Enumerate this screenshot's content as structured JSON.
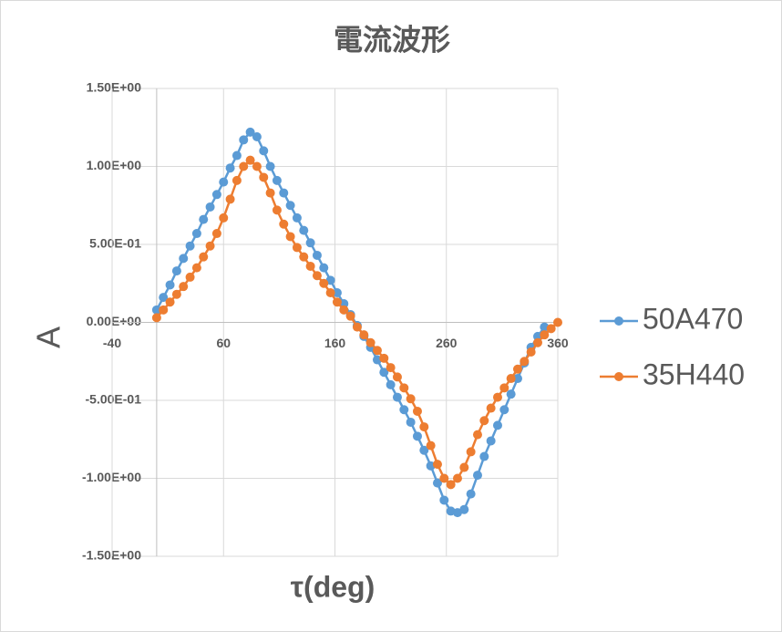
{
  "chart_data": {
    "type": "scatter",
    "title": "電流波形",
    "x_label": "τ(deg)",
    "y_label": "A",
    "xlim": [
      -40,
      360
    ],
    "xticks": [
      -40,
      60,
      160,
      260,
      360
    ],
    "ylim": [
      -1.5,
      1.5
    ],
    "yticks": [
      {
        "value": -1.5,
        "label": "-1.50E+00"
      },
      {
        "value": -1.0,
        "label": "-1.00E+00"
      },
      {
        "value": -0.5,
        "label": "-5.00E-01"
      },
      {
        "value": 0,
        "label": "0.00E+00"
      },
      {
        "value": 0.5,
        "label": "5.00E-01"
      },
      {
        "value": 1.0,
        "label": "1.00E+00"
      },
      {
        "value": 1.5,
        "label": "1.50E+00"
      }
    ],
    "grid": true,
    "legend": "right",
    "series": [
      {
        "name": "50A470",
        "color": "#5b9bd5",
        "x": [
          0,
          6,
          12,
          18,
          24,
          30,
          36,
          42,
          48,
          54,
          60,
          66,
          72,
          78,
          84,
          90,
          96,
          102,
          108,
          114,
          120,
          126,
          132,
          138,
          144,
          150,
          156,
          162,
          168,
          174,
          180,
          186,
          192,
          198,
          204,
          210,
          216,
          222,
          228,
          234,
          240,
          246,
          252,
          258,
          264,
          270,
          276,
          282,
          288,
          294,
          300,
          306,
          312,
          318,
          324,
          330,
          336,
          342,
          348
        ],
        "values": [
          0.08,
          0.16,
          0.24,
          0.33,
          0.41,
          0.49,
          0.57,
          0.66,
          0.74,
          0.82,
          0.9,
          0.99,
          1.07,
          1.17,
          1.22,
          1.19,
          1.1,
          1.0,
          0.91,
          0.83,
          0.75,
          0.67,
          0.59,
          0.51,
          0.43,
          0.35,
          0.27,
          0.19,
          0.12,
          0.05,
          -0.02,
          -0.09,
          -0.16,
          -0.24,
          -0.32,
          -0.4,
          -0.48,
          -0.56,
          -0.64,
          -0.73,
          -0.82,
          -0.92,
          -1.03,
          -1.14,
          -1.21,
          -1.22,
          -1.2,
          -1.1,
          -0.98,
          -0.86,
          -0.76,
          -0.66,
          -0.56,
          -0.46,
          -0.36,
          -0.26,
          -0.16,
          -0.09,
          -0.03
        ]
      },
      {
        "name": "35H440",
        "color": "#ed7d31",
        "x": [
          0,
          6,
          12,
          18,
          24,
          30,
          36,
          42,
          48,
          54,
          60,
          66,
          72,
          78,
          84,
          90,
          96,
          102,
          108,
          114,
          120,
          126,
          132,
          138,
          144,
          150,
          156,
          162,
          168,
          174,
          180,
          186,
          192,
          198,
          204,
          210,
          216,
          222,
          228,
          234,
          240,
          246,
          252,
          258,
          264,
          270,
          276,
          282,
          288,
          294,
          300,
          306,
          312,
          318,
          324,
          330,
          336,
          342,
          348,
          354,
          360
        ],
        "values": [
          0.03,
          0.08,
          0.13,
          0.18,
          0.23,
          0.29,
          0.35,
          0.42,
          0.49,
          0.57,
          0.67,
          0.79,
          0.91,
          1.0,
          1.04,
          1.0,
          0.93,
          0.83,
          0.72,
          0.63,
          0.55,
          0.48,
          0.42,
          0.36,
          0.3,
          0.25,
          0.19,
          0.13,
          0.08,
          0.04,
          -0.03,
          -0.08,
          -0.13,
          -0.18,
          -0.23,
          -0.29,
          -0.35,
          -0.42,
          -0.49,
          -0.57,
          -0.67,
          -0.79,
          -0.91,
          -1.0,
          -1.04,
          -1.0,
          -0.93,
          -0.83,
          -0.72,
          -0.63,
          -0.55,
          -0.48,
          -0.42,
          -0.36,
          -0.3,
          -0.25,
          -0.19,
          -0.13,
          -0.08,
          -0.04,
          0.0
        ]
      }
    ]
  }
}
